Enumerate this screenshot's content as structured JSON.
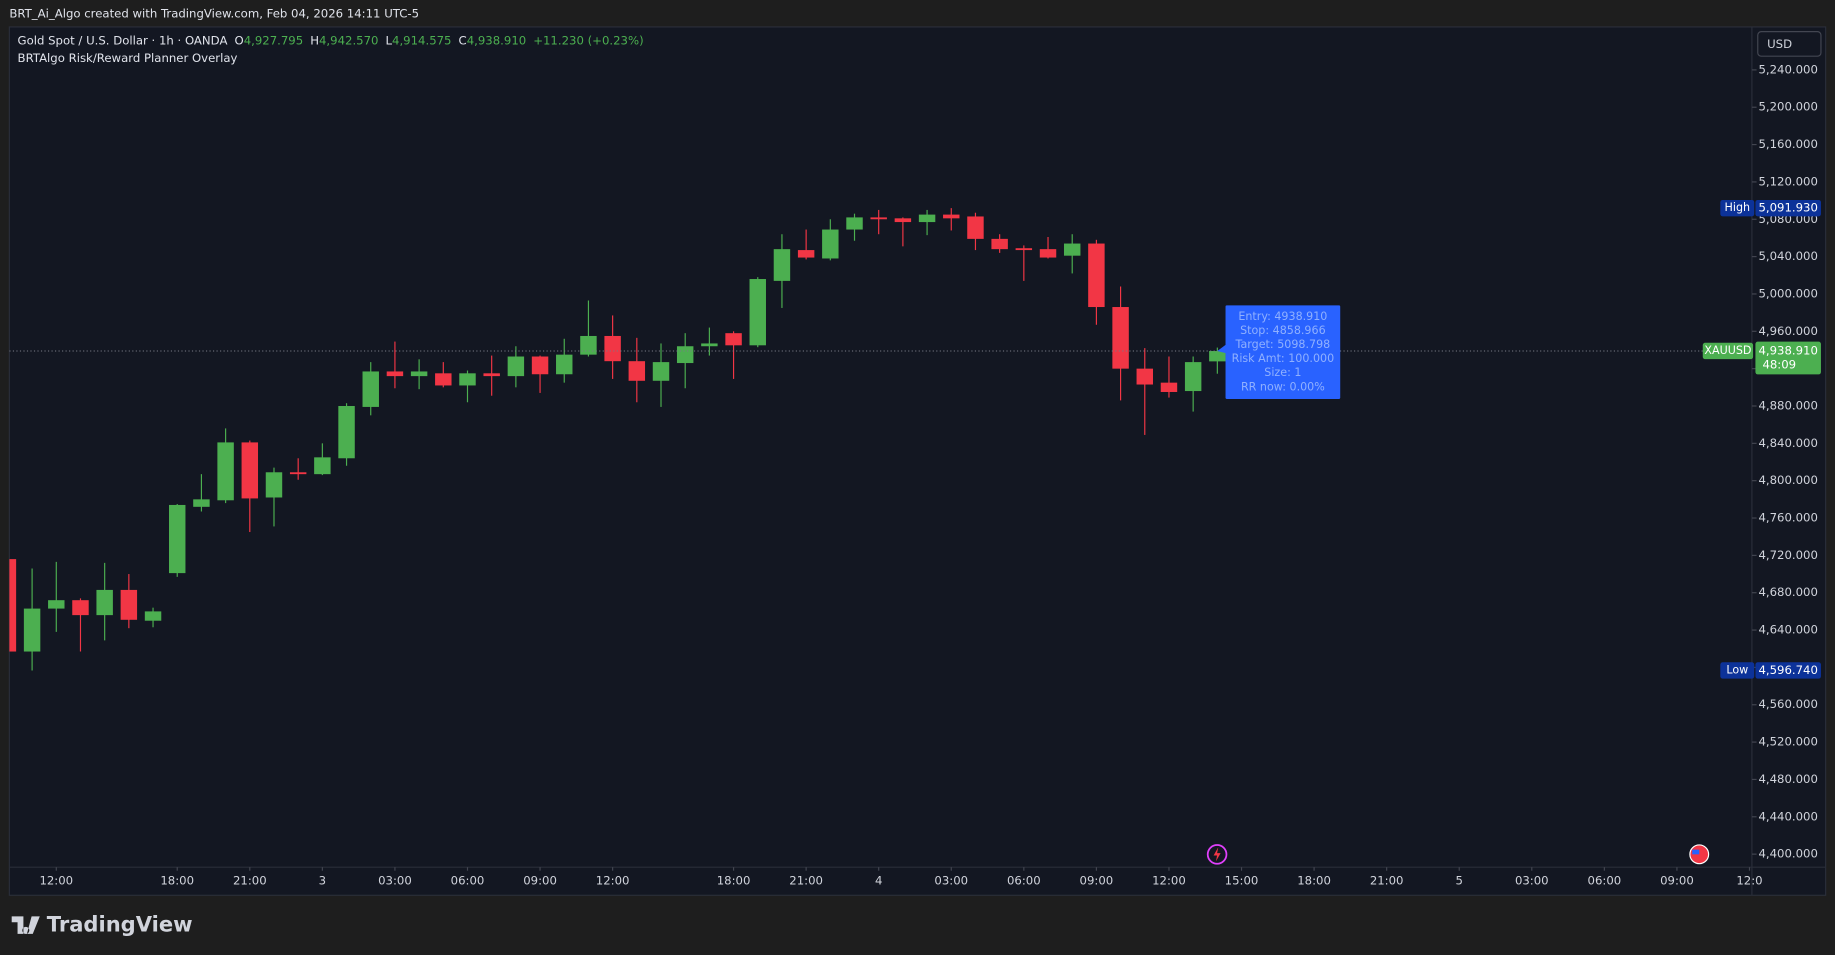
{
  "header": {
    "caption": "BRT_Ai_Algo created with TradingView.com, Feb 04, 2026 14:11 UTC-5"
  },
  "footer": {
    "brand": "TradingView"
  },
  "chart_data": {
    "type": "candlestick",
    "symbol_title": "Gold Spot / U.S. Dollar · 1h · OANDA",
    "legend_values": [
      {
        "key": "O",
        "text": "4,927.795"
      },
      {
        "key": "H",
        "text": "4,942.570"
      },
      {
        "key": "L",
        "text": "4,914.575"
      },
      {
        "key": "C",
        "text": "4,938.910"
      }
    ],
    "change_text": "+11.230 (+0.23%)",
    "indicator_title": "BRTAlgo Risk/Reward Planner Overlay",
    "currency_button": "USD",
    "up_color": "#4caf50",
    "down_color": "#f23645",
    "open": [
      4716,
      4617,
      4663,
      4672,
      4656,
      4683,
      4650,
      4701,
      4772,
      4779,
      4841,
      4782,
      4809,
      4807,
      4824,
      4879,
      4917,
      4912,
      4915,
      4902,
      4915,
      4912,
      4933,
      4914,
      4935,
      4955,
      4928,
      4907,
      4926,
      4944,
      4958,
      4945,
      5014,
      5047,
      5038,
      5069,
      5082,
      5081,
      5077,
      5085,
      5083,
      5059,
      5049,
      5048,
      5041,
      5054,
      4986,
      4920,
      4905,
      4896,
      4927.795
    ],
    "high": [
      4716,
      4706,
      4713,
      4674,
      4712,
      4700,
      4664,
      4775,
      4807,
      4856,
      4843,
      4814,
      4824,
      4840,
      4883,
      4927,
      4949,
      4930,
      4927,
      4918,
      4934,
      4944,
      4934,
      4952,
      4993,
      4977,
      4953,
      4947,
      4958,
      4964,
      4960,
      5018,
      5064,
      5069,
      5080,
      5086,
      5090,
      5082,
      5090,
      5091.93,
      5087,
      5064,
      5052,
      5061,
      5064,
      5058,
      5008,
      4942,
      4933,
      4933,
      4942.57
    ],
    "low": [
      4610,
      4596.74,
      4638,
      4617,
      4629,
      4642,
      4643,
      4697,
      4767,
      4776,
      4745,
      4751,
      4801,
      4806,
      4816,
      4870,
      4899,
      4898,
      4900,
      4884,
      4891,
      4900,
      4894,
      4905,
      4933,
      4909,
      4884,
      4879,
      4899,
      4934,
      4909,
      4943,
      4985,
      5037,
      5036,
      5057,
      5064,
      5051,
      5063,
      5068,
      5047,
      5044,
      5014,
      5038,
      5022,
      4967,
      4886,
      4849,
      4889,
      4874,
      4914.575
    ],
    "close": [
      4617,
      4663,
      4672,
      4656,
      4683,
      4651,
      4660,
      4774,
      4780,
      4841,
      4781,
      4809,
      4807,
      4825,
      4880,
      4917,
      4912,
      4917,
      4902,
      4915,
      4912,
      4933,
      4914,
      4935,
      4955,
      4928,
      4907,
      4927,
      4944,
      4947,
      4945,
      5016,
      5048,
      5039,
      5069,
      5082,
      5080,
      5077,
      5085,
      5081,
      5059,
      5048,
      5047,
      5039,
      5054,
      4986,
      4920,
      4903,
      4895,
      4927,
      4938.91
    ],
    "xlim": [
      0.06,
      72.1
    ],
    "xticks": [
      {
        "value": 2,
        "label": "12:00"
      },
      {
        "value": 7,
        "label": "18:00"
      },
      {
        "value": 10,
        "label": "21:00"
      },
      {
        "value": 13,
        "label": "3"
      },
      {
        "value": 16,
        "label": "03:00"
      },
      {
        "value": 19,
        "label": "06:00"
      },
      {
        "value": 22,
        "label": "09:00"
      },
      {
        "value": 25,
        "label": "12:00"
      },
      {
        "value": 30,
        "label": "18:00"
      },
      {
        "value": 33,
        "label": "21:00"
      },
      {
        "value": 36,
        "label": "4"
      },
      {
        "value": 39,
        "label": "03:00"
      },
      {
        "value": 42,
        "label": "06:00"
      },
      {
        "value": 45,
        "label": "09:00"
      },
      {
        "value": 48,
        "label": "12:00"
      },
      {
        "value": 51,
        "label": "15:00"
      },
      {
        "value": 54,
        "label": "18:00"
      },
      {
        "value": 57,
        "label": "21:00"
      },
      {
        "value": 60,
        "label": "5"
      },
      {
        "value": 63,
        "label": "03:00"
      },
      {
        "value": 66,
        "label": "06:00"
      },
      {
        "value": 69,
        "label": "09:00"
      },
      {
        "value": 72,
        "label": "12:0"
      }
    ],
    "ylim": [
      4386,
      5286
    ],
    "yticks": [
      {
        "value": 4400,
        "label": "4,400.000"
      },
      {
        "value": 4440,
        "label": "4,440.000"
      },
      {
        "value": 4480,
        "label": "4,480.000"
      },
      {
        "value": 4520,
        "label": "4,520.000"
      },
      {
        "value": 4560,
        "label": "4,560.000"
      },
      {
        "value": 4600,
        "label": "4,600.000"
      },
      {
        "value": 4640,
        "label": "4,640.000"
      },
      {
        "value": 4680,
        "label": "4,680.000"
      },
      {
        "value": 4720,
        "label": "4,720.000"
      },
      {
        "value": 4760,
        "label": "4,760.000"
      },
      {
        "value": 4800,
        "label": "4,800.000"
      },
      {
        "value": 4840,
        "label": "4,840.000"
      },
      {
        "value": 4880,
        "label": "4,880.000"
      },
      {
        "value": 4920,
        "label": "4,920.000"
      },
      {
        "value": 4960,
        "label": "4,960.000"
      },
      {
        "value": 5000,
        "label": "5,000.000"
      },
      {
        "value": 5040,
        "label": "5,040.000"
      },
      {
        "value": 5080,
        "label": "5,080.000"
      },
      {
        "value": 5120,
        "label": "5,120.000"
      },
      {
        "value": 5160,
        "label": "5,160.000"
      },
      {
        "value": 5200,
        "label": "5,200.000"
      },
      {
        "value": 5240,
        "label": "5,240.000"
      }
    ],
    "high_marker": {
      "label": "High",
      "value": 5091.93,
      "value_label": "5,091.930"
    },
    "low_marker": {
      "label": "Low",
      "value": 4596.74,
      "value_label": "4,596.740"
    },
    "last_price": {
      "label": "XAUUSD",
      "value": 4938.91,
      "value_label": "4,938.910",
      "countdown": "48:09"
    },
    "info_box": [
      "Entry: 4938.910",
      "Stop: 4858.966",
      "Target: 5098.798",
      "Risk Amt: 100.000",
      "Size: 1",
      "RR now: 0.00%"
    ]
  }
}
